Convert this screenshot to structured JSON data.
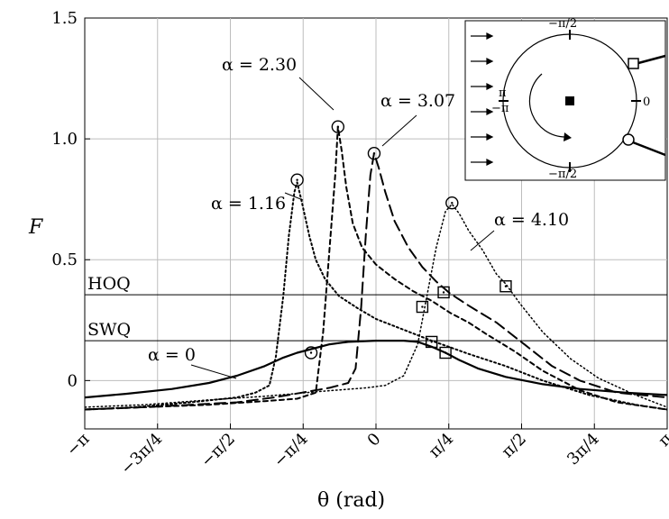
{
  "chart_data": {
    "type": "line",
    "xlabel": "θ (rad)",
    "ylabel": "F",
    "xlim": [
      -3.14159,
      3.14159
    ],
    "ylim": [
      -0.2,
      1.5
    ],
    "grid": true,
    "x_ticks": [
      {
        "value": -3.14159,
        "label": "−π"
      },
      {
        "value": -2.35619,
        "label": "−3π/4"
      },
      {
        "value": -1.5708,
        "label": "−π/2"
      },
      {
        "value": -0.7854,
        "label": "−π/4"
      },
      {
        "value": 0,
        "label": "0"
      },
      {
        "value": 0.7854,
        "label": "π/4"
      },
      {
        "value": 1.5708,
        "label": "π/2"
      },
      {
        "value": 2.35619,
        "label": "3π/4"
      },
      {
        "value": 3.14159,
        "label": "π"
      }
    ],
    "y_ticks": [
      {
        "value": 0,
        "label": "0"
      },
      {
        "value": 0.5,
        "label": "0.5"
      },
      {
        "value": 1.0,
        "label": "1.0"
      },
      {
        "value": 1.5,
        "label": "1.5"
      }
    ],
    "reference_lines": [
      {
        "label": "HOQ",
        "y": 0.355
      },
      {
        "label": "SWQ",
        "y": 0.165
      }
    ],
    "series": [
      {
        "name": "α = 0",
        "dash": "solid",
        "points": [
          [
            -3.14,
            -0.07
          ],
          [
            -2.7,
            -0.055
          ],
          [
            -2.2,
            -0.035
          ],
          [
            -1.8,
            -0.01
          ],
          [
            -1.5,
            0.02
          ],
          [
            -1.2,
            0.06
          ],
          [
            -1.0,
            0.095
          ],
          [
            -0.85,
            0.115
          ],
          [
            -0.7,
            0.13
          ],
          [
            -0.5,
            0.15
          ],
          [
            -0.3,
            0.16
          ],
          [
            0,
            0.165
          ],
          [
            0.3,
            0.165
          ],
          [
            0.45,
            0.16
          ],
          [
            0.6,
            0.14
          ],
          [
            0.75,
            0.115
          ],
          [
            0.9,
            0.085
          ],
          [
            1.1,
            0.05
          ],
          [
            1.4,
            0.015
          ],
          [
            1.8,
            -0.015
          ],
          [
            2.2,
            -0.035
          ],
          [
            2.7,
            -0.05
          ],
          [
            3.14,
            -0.06
          ]
        ],
        "markers": [
          {
            "x": -0.7,
            "y": 0.115,
            "shape": "circle"
          },
          {
            "x": 0.75,
            "y": 0.115,
            "shape": "square"
          }
        ]
      },
      {
        "name": "α = 1.16",
        "dash": "dotted",
        "points": [
          [
            -3.14,
            -0.12
          ],
          [
            -2.6,
            -0.11
          ],
          [
            -2.0,
            -0.09
          ],
          [
            -1.5,
            -0.07
          ],
          [
            -1.3,
            -0.05
          ],
          [
            -1.15,
            -0.02
          ],
          [
            -1.08,
            0.1
          ],
          [
            -1.0,
            0.35
          ],
          [
            -0.94,
            0.6
          ],
          [
            -0.88,
            0.78
          ],
          [
            -0.85,
            0.82
          ],
          [
            -0.8,
            0.74
          ],
          [
            -0.72,
            0.6
          ],
          [
            -0.65,
            0.5
          ],
          [
            -0.55,
            0.42
          ],
          [
            -0.4,
            0.35
          ],
          [
            -0.2,
            0.3
          ],
          [
            0,
            0.255
          ],
          [
            0.3,
            0.21
          ],
          [
            0.6,
            0.165
          ],
          [
            1.0,
            0.11
          ],
          [
            1.4,
            0.06
          ],
          [
            1.8,
            0.0
          ],
          [
            2.3,
            -0.06
          ],
          [
            2.8,
            -0.1
          ],
          [
            3.14,
            -0.12
          ]
        ],
        "markers": [
          {
            "x": -0.85,
            "y": 0.83,
            "shape": "circle"
          },
          {
            "x": 0.6,
            "y": 0.16,
            "shape": "square"
          }
        ]
      },
      {
        "name": "α = 2.30",
        "dash": "short-dash",
        "points": [
          [
            -3.14,
            -0.12
          ],
          [
            -2.5,
            -0.11
          ],
          [
            -1.8,
            -0.1
          ],
          [
            -1.2,
            -0.085
          ],
          [
            -0.85,
            -0.075
          ],
          [
            -0.65,
            -0.05
          ],
          [
            -0.57,
            0.2
          ],
          [
            -0.5,
            0.55
          ],
          [
            -0.44,
            0.85
          ],
          [
            -0.41,
            1.05
          ],
          [
            -0.37,
            0.95
          ],
          [
            -0.32,
            0.8
          ],
          [
            -0.25,
            0.65
          ],
          [
            -0.15,
            0.55
          ],
          [
            0,
            0.48
          ],
          [
            0.2,
            0.42
          ],
          [
            0.4,
            0.37
          ],
          [
            0.6,
            0.33
          ],
          [
            0.8,
            0.28
          ],
          [
            1.0,
            0.24
          ],
          [
            1.2,
            0.19
          ],
          [
            1.5,
            0.12
          ],
          [
            1.8,
            0.04
          ],
          [
            2.2,
            -0.04
          ],
          [
            2.6,
            -0.09
          ],
          [
            3.14,
            -0.12
          ]
        ],
        "markers": [
          {
            "x": -0.41,
            "y": 1.05,
            "shape": "circle"
          },
          {
            "x": 0.5,
            "y": 0.305,
            "shape": "square"
          }
        ]
      },
      {
        "name": "α = 3.07",
        "dash": "long-dash",
        "points": [
          [
            -3.14,
            -0.12
          ],
          [
            -2.5,
            -0.11
          ],
          [
            -2.0,
            -0.1
          ],
          [
            -1.5,
            -0.09
          ],
          [
            -1.1,
            -0.07
          ],
          [
            -0.8,
            -0.05
          ],
          [
            -0.5,
            -0.03
          ],
          [
            -0.3,
            -0.01
          ],
          [
            -0.22,
            0.05
          ],
          [
            -0.16,
            0.3
          ],
          [
            -0.11,
            0.6
          ],
          [
            -0.06,
            0.85
          ],
          [
            -0.02,
            0.94
          ],
          [
            0.03,
            0.88
          ],
          [
            0.1,
            0.78
          ],
          [
            0.2,
            0.66
          ],
          [
            0.35,
            0.55
          ],
          [
            0.5,
            0.47
          ],
          [
            0.65,
            0.41
          ],
          [
            0.8,
            0.36
          ],
          [
            1.0,
            0.31
          ],
          [
            1.3,
            0.24
          ],
          [
            1.6,
            0.15
          ],
          [
            1.9,
            0.06
          ],
          [
            2.2,
            0.0
          ],
          [
            2.6,
            -0.05
          ],
          [
            3.14,
            -0.07
          ]
        ],
        "markers": [
          {
            "x": -0.02,
            "y": 0.94,
            "shape": "circle"
          },
          {
            "x": 0.73,
            "y": 0.365,
            "shape": "square"
          }
        ]
      },
      {
        "name": "α = 4.10",
        "dash": "fine-dot",
        "points": [
          [
            -3.14,
            -0.11
          ],
          [
            -2.5,
            -0.1
          ],
          [
            -1.8,
            -0.08
          ],
          [
            -1.2,
            -0.065
          ],
          [
            -0.6,
            -0.045
          ],
          [
            -0.1,
            -0.03
          ],
          [
            0.1,
            -0.02
          ],
          [
            0.3,
            0.02
          ],
          [
            0.45,
            0.15
          ],
          [
            0.55,
            0.35
          ],
          [
            0.65,
            0.55
          ],
          [
            0.75,
            0.7
          ],
          [
            0.82,
            0.73
          ],
          [
            0.9,
            0.69
          ],
          [
            1.0,
            0.62
          ],
          [
            1.15,
            0.54
          ],
          [
            1.3,
            0.44
          ],
          [
            1.4,
            0.4
          ],
          [
            1.55,
            0.32
          ],
          [
            1.8,
            0.2
          ],
          [
            2.1,
            0.09
          ],
          [
            2.4,
            0.01
          ],
          [
            2.8,
            -0.06
          ],
          [
            3.14,
            -0.11
          ]
        ],
        "markers": [
          {
            "x": 0.82,
            "y": 0.735,
            "shape": "circle"
          },
          {
            "x": 1.4,
            "y": 0.39,
            "shape": "square"
          }
        ]
      }
    ],
    "annotations": [
      {
        "text": "α = 0"
      },
      {
        "text": "α = 1.16"
      },
      {
        "text": "α = 2.30"
      },
      {
        "text": "α = 3.07"
      },
      {
        "text": "α = 4.10"
      }
    ],
    "inset": {
      "labels": {
        "top": "−π/2",
        "bottom": "−π/2",
        "right": "0",
        "left_top": "π",
        "left_bottom": "−π"
      }
    }
  }
}
